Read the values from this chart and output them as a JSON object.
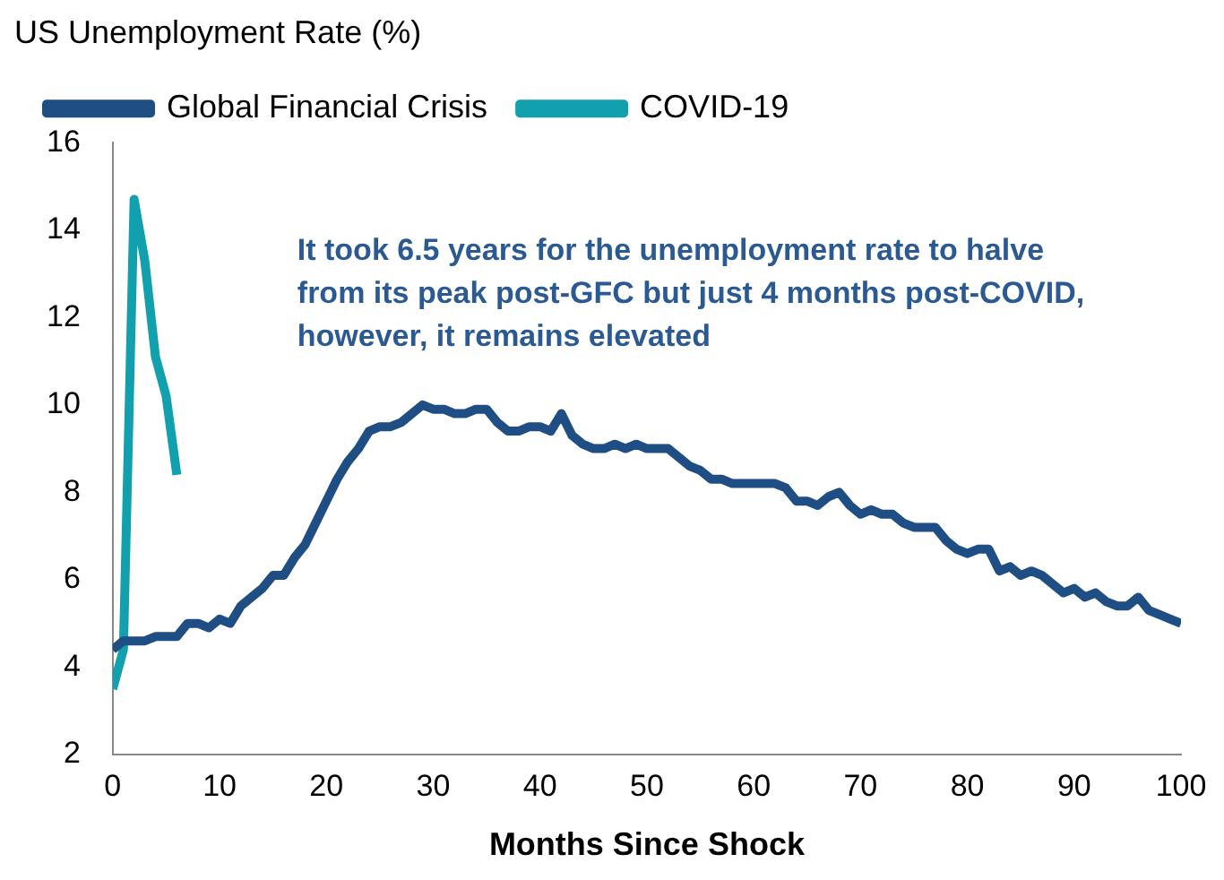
{
  "chart_data": {
    "type": "line",
    "title": "US Unemployment Rate (%)",
    "xlabel": "Months Since Shock",
    "annotations": [
      "It took 6.5 years for the unemployment rate to halve from its peak post-GFC but just 4 months post-COVID, however, it remains elevated"
    ],
    "x": [
      0,
      1,
      2,
      3,
      4,
      5,
      6,
      7,
      8,
      9,
      10,
      11,
      12,
      13,
      14,
      15,
      16,
      17,
      18,
      19,
      20,
      21,
      22,
      23,
      24,
      25,
      26,
      27,
      28,
      29,
      30,
      31,
      32,
      33,
      34,
      35,
      36,
      37,
      38,
      39,
      40,
      41,
      42,
      43,
      44,
      45,
      46,
      47,
      48,
      49,
      50,
      51,
      52,
      53,
      54,
      55,
      56,
      57,
      58,
      59,
      60,
      61,
      62,
      63,
      64,
      65,
      66,
      67,
      68,
      69,
      70,
      71,
      72,
      73,
      74,
      75,
      76,
      77,
      78,
      79,
      80,
      81,
      82,
      83,
      84,
      85,
      86,
      87,
      88,
      89,
      90,
      91,
      92,
      93,
      94,
      95,
      96,
      97,
      98,
      99,
      100
    ],
    "series": [
      {
        "name": "Global Financial Crisis",
        "color": "#1f4e85",
        "values": [
          4.4,
          4.6,
          4.6,
          4.6,
          4.7,
          4.7,
          4.7,
          5.0,
          5.0,
          4.9,
          5.1,
          5.0,
          5.4,
          5.6,
          5.8,
          6.1,
          6.1,
          6.5,
          6.8,
          7.3,
          7.8,
          8.3,
          8.7,
          9.0,
          9.4,
          9.5,
          9.5,
          9.6,
          9.8,
          10.0,
          9.9,
          9.9,
          9.8,
          9.8,
          9.9,
          9.9,
          9.6,
          9.4,
          9.4,
          9.5,
          9.5,
          9.4,
          9.8,
          9.3,
          9.1,
          9.0,
          9.0,
          9.1,
          9.0,
          9.1,
          9.0,
          9.0,
          9.0,
          8.8,
          8.6,
          8.5,
          8.3,
          8.3,
          8.2,
          8.2,
          8.2,
          8.2,
          8.2,
          8.1,
          7.8,
          7.8,
          7.7,
          7.9,
          8.0,
          7.7,
          7.5,
          7.6,
          7.5,
          7.5,
          7.3,
          7.2,
          7.2,
          7.2,
          6.9,
          6.7,
          6.6,
          6.7,
          6.7,
          6.2,
          6.3,
          6.1,
          6.2,
          6.1,
          5.9,
          5.7,
          5.8,
          5.6,
          5.7,
          5.5,
          5.4,
          5.4,
          5.6,
          5.3,
          5.2,
          5.1,
          5.0
        ]
      },
      {
        "name": "COVID-19",
        "color": "#12a0ae",
        "x": [
          0,
          1,
          2,
          3,
          4,
          5,
          6
        ],
        "values": [
          3.5,
          4.4,
          14.7,
          13.3,
          11.1,
          10.2,
          8.4
        ]
      }
    ],
    "xlim": [
      0,
      100
    ],
    "xticks": [
      0,
      10,
      20,
      30,
      40,
      50,
      60,
      70,
      80,
      90,
      100
    ],
    "ylim": [
      2,
      16
    ],
    "yticks": [
      2,
      4,
      6,
      8,
      10,
      12,
      14,
      16
    ],
    "grid": false,
    "legend": "top",
    "marker": "none",
    "line_style": "solid"
  }
}
